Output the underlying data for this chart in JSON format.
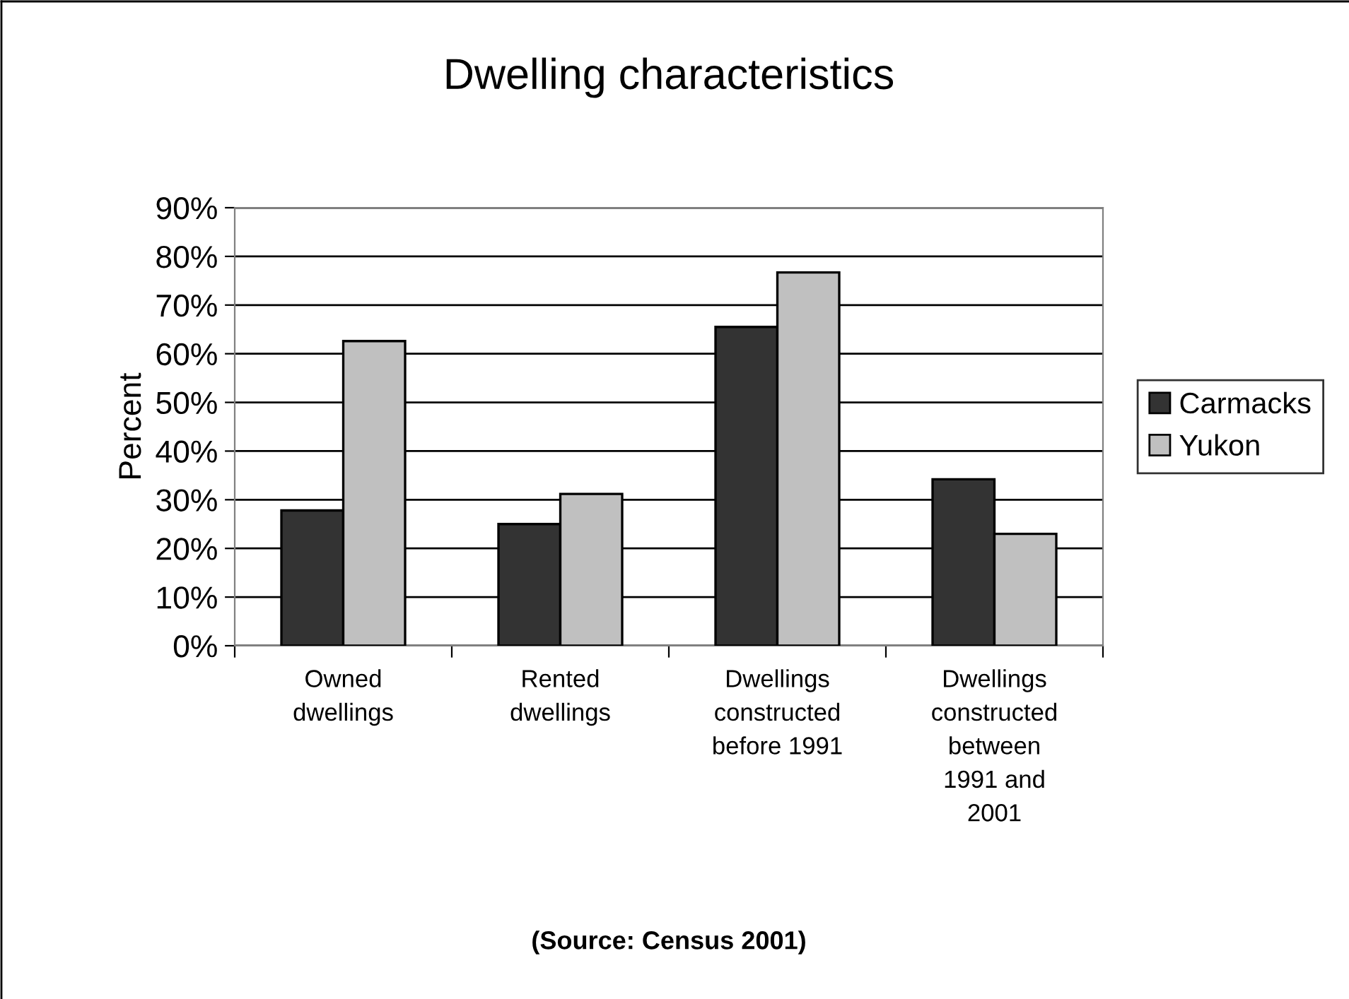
{
  "chart_data": {
    "type": "bar",
    "title": "Dwelling characteristics",
    "ylabel": "Percent",
    "categories": [
      "Owned\ndwellings",
      "Rented\ndwellings",
      "Dwellings\nconstructed\nbefore 1991",
      "Dwellings\nconstructed\nbetween\n1991 and\n2001"
    ],
    "series": [
      {
        "name": "Carmacks",
        "color": "#333333",
        "values": [
          27.8,
          25,
          65.5,
          34.2
        ]
      },
      {
        "name": "Yukon",
        "color": "#c0c0c0",
        "values": [
          62.6,
          31.2,
          76.7,
          23
        ]
      }
    ],
    "ylim": [
      0,
      90
    ],
    "yticks": [
      {
        "value": 0,
        "label": "0%"
      },
      {
        "value": 10,
        "label": "10%"
      },
      {
        "value": 20,
        "label": "20%"
      },
      {
        "value": 30,
        "label": "30%"
      },
      {
        "value": 40,
        "label": "40%"
      },
      {
        "value": 50,
        "label": "50%"
      },
      {
        "value": 60,
        "label": "60%"
      },
      {
        "value": 70,
        "label": "70%"
      },
      {
        "value": 80,
        "label": "80%"
      },
      {
        "value": 90,
        "label": "90%"
      }
    ],
    "grid": "y",
    "legend": "right",
    "annotations": [
      "(Source: Census 2001)"
    ]
  }
}
